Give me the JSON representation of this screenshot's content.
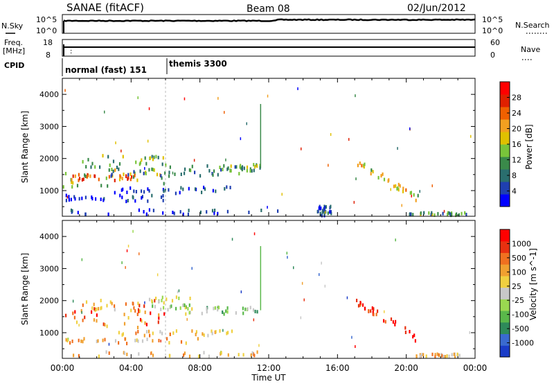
{
  "header": {
    "title": "SANAE (fitACF)",
    "beam": "Beam 08",
    "date": "02/Jun/2012"
  },
  "top_panels": {
    "nsky_label": "N.Sky",
    "nsky_ticks": [
      "10^5",
      "10^0"
    ],
    "nsearch_label": "N.Search",
    "nsearch_ticks": [
      "10^5",
      "10^0"
    ],
    "freq_label_1": "Freq.",
    "freq_label_2": "[MHz]",
    "freq_ticks": [
      "18",
      "8"
    ],
    "nave_label": "Nave",
    "nave_ticks": [
      "60",
      "0"
    ],
    "cpid_label": "CPID",
    "cpid_segments": [
      {
        "text": "normal (fast) 151",
        "start_hour": 0
      },
      {
        "text": "themis 3300",
        "start_hour": 6
      }
    ]
  },
  "chart_data": [
    {
      "type": "heatmap",
      "title": "",
      "xlabel": "Time UT",
      "ylabel": "Slant Range [km]",
      "xlim": [
        0,
        24
      ],
      "ylim": [
        200,
        4500
      ],
      "x_ticks": [
        "00:00",
        "04:00",
        "08:00",
        "12:00",
        "16:00",
        "20:00",
        "00:00"
      ],
      "y_ticks": [
        "1000",
        "2000",
        "3000",
        "4000"
      ],
      "colorbar_label": "Power [dB]",
      "colorbar_ticks": [
        "4",
        "8",
        "12",
        "16",
        "20",
        "24",
        "28"
      ],
      "colorbar_colors": [
        "#0000ff",
        "#1f3fb0",
        "#2a6e6e",
        "#3a8a4a",
        "#79c43a",
        "#e0c000",
        "#f2a020",
        "#f06000",
        "#e02000",
        "#ff0000"
      ],
      "echo_regions": [
        {
          "t0": 0.0,
          "t1": 6.2,
          "r0": 1100,
          "r1": 1650,
          "level": 0.45
        },
        {
          "t0": 0.5,
          "t1": 4.5,
          "r0": 1300,
          "r1": 1500,
          "level": 0.7
        },
        {
          "t0": 1.0,
          "t1": 6.0,
          "r0": 1700,
          "r1": 2100,
          "level": 0.4
        },
        {
          "t0": 2.5,
          "t1": 10.5,
          "r0": 1400,
          "r1": 1800,
          "level": 0.25
        },
        {
          "t0": 9.0,
          "t1": 11.5,
          "r0": 1600,
          "r1": 1800,
          "level": 0.35
        },
        {
          "t0": 3.0,
          "t1": 10.0,
          "r0": 900,
          "r1": 1100,
          "level": 0.1
        },
        {
          "t0": 0.0,
          "t1": 6.0,
          "r0": 650,
          "r1": 850,
          "level": 0.12
        },
        {
          "t0": 0.0,
          "t1": 13.0,
          "r0": 250,
          "r1": 400,
          "level": 0.1
        },
        {
          "t0": 17.0,
          "t1": 20.8,
          "r0": 700,
          "r1": 1900,
          "level": 0.55,
          "diagonal": true
        },
        {
          "t0": 20.0,
          "t1": 23.5,
          "r0": 220,
          "r1": 300,
          "level": 0.35
        },
        {
          "t0": 14.8,
          "t1": 15.6,
          "r0": 200,
          "r1": 500,
          "level": 0.15
        }
      ]
    },
    {
      "type": "heatmap",
      "title": "",
      "xlabel": "Time UT",
      "ylabel": "Slant Range [km]",
      "xlim": [
        0,
        24
      ],
      "ylim": [
        200,
        4500
      ],
      "x_ticks": [
        "00:00",
        "04:00",
        "08:00",
        "12:00",
        "16:00",
        "20:00",
        "00:00"
      ],
      "y_ticks": [
        "1000",
        "2000",
        "3000",
        "4000"
      ],
      "colorbar_label": "Velocity [m s^-1]",
      "colorbar_ticks": [
        "1000",
        "500",
        "100",
        "25",
        "-25",
        "-100",
        "-500",
        "-1000"
      ],
      "colorbar_colors": [
        "#1a3cc8",
        "#3a6ad0",
        "#2e8a5a",
        "#5ab84a",
        "#9ad850",
        "#c8c8c8",
        "#f0d040",
        "#f0a030",
        "#f07020",
        "#e83010",
        "#ff0000"
      ],
      "echo_regions": [
        {
          "t0": 0.0,
          "t1": 6.0,
          "r0": 1150,
          "r1": 1650,
          "level": 0.78
        },
        {
          "t0": 1.0,
          "t1": 5.5,
          "r0": 1650,
          "r1": 2000,
          "level": 0.7
        },
        {
          "t0": 5.0,
          "t1": 7.5,
          "r0": 1700,
          "r1": 2100,
          "level": 0.45
        },
        {
          "t0": 6.5,
          "t1": 11.5,
          "r0": 1550,
          "r1": 1800,
          "level": 0.38
        },
        {
          "t0": 0.0,
          "t1": 8.0,
          "r0": 650,
          "r1": 800,
          "level": 0.62
        },
        {
          "t0": 3.0,
          "t1": 10.0,
          "r0": 900,
          "r1": 1050,
          "level": 0.62
        },
        {
          "t0": 0.0,
          "t1": 12.0,
          "r0": 250,
          "r1": 400,
          "level": 0.62
        },
        {
          "t0": 17.0,
          "t1": 20.6,
          "r0": 800,
          "r1": 2000,
          "level": 0.88,
          "diagonal": true
        },
        {
          "t0": 20.5,
          "t1": 23.2,
          "r0": 220,
          "r1": 320,
          "level": 0.62
        }
      ]
    }
  ]
}
